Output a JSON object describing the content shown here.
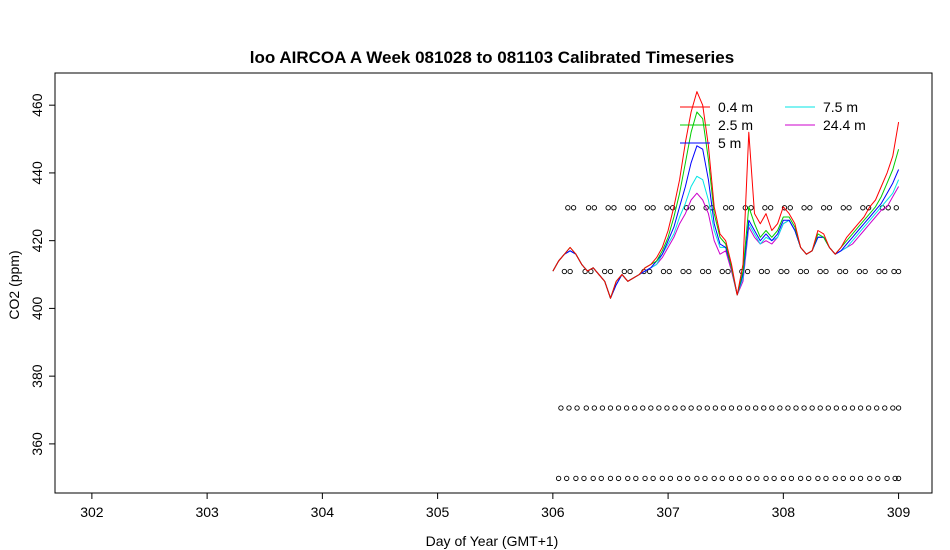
{
  "chart_data": {
    "type": "line",
    "title": "loo AIRCOA A  Week 081028 to 081103  Calibrated Timeseries",
    "xlabel": "Day of Year (GMT+1)",
    "ylabel": "CO2 (ppm)",
    "xlim": [
      301.68,
      309.29
    ],
    "ylim": [
      345.5,
      469.5
    ],
    "x_ticks": [
      302,
      303,
      304,
      305,
      306,
      307,
      308,
      309
    ],
    "x_tick_labels": [
      "302",
      "303",
      "304",
      "305",
      "306",
      "307",
      "308",
      "309"
    ],
    "y_ticks": [
      360,
      380,
      400,
      420,
      440,
      460
    ],
    "y_tick_labels": [
      "360",
      "380",
      "400",
      "420",
      "440",
      "460"
    ],
    "legend": {
      "position": "top-right",
      "columns": [
        [
          "0.4 m",
          "2.5 m",
          "5 m"
        ],
        [
          "7.5 m",
          "24.4 m"
        ]
      ]
    },
    "colors": {
      "0.4 m": "#ff0000",
      "2.5 m": "#00cc00",
      "5 m": "#0000ff",
      "7.5 m": "#00e5e5",
      "24.4 m": "#cc00cc"
    },
    "series": [
      {
        "name": "24.4 m",
        "x": [
          306.0,
          306.05,
          306.1,
          306.15,
          306.2,
          306.25,
          306.3,
          306.35,
          306.4,
          306.45,
          306.5,
          306.55,
          306.6,
          306.65,
          306.7,
          306.75,
          306.8,
          306.85,
          306.9,
          306.95,
          307.0,
          307.05,
          307.1,
          307.15,
          307.2,
          307.25,
          307.3,
          307.35,
          307.4,
          307.45,
          307.5,
          307.55,
          307.6,
          307.65,
          307.7,
          307.75,
          307.8,
          307.85,
          307.9,
          307.95,
          308.0,
          308.05,
          308.1,
          308.15,
          308.2,
          308.25,
          308.3,
          308.35,
          308.4,
          308.45,
          308.5,
          308.55,
          308.6,
          308.65,
          308.7,
          308.75,
          308.8,
          308.85,
          308.9,
          308.95,
          309.0
        ],
        "y": [
          411,
          414,
          416,
          417,
          416,
          413,
          411,
          412,
          410,
          408,
          403,
          407,
          410,
          408,
          409,
          410,
          411,
          412,
          413,
          415,
          418,
          421,
          425,
          428,
          432,
          434,
          432,
          428,
          420,
          416,
          417,
          411,
          404,
          408,
          424,
          421,
          419,
          420,
          419,
          421,
          425,
          426,
          423,
          418,
          416,
          417,
          421,
          421,
          418,
          416,
          417,
          418,
          419,
          421,
          423,
          425,
          427,
          429,
          430,
          433,
          436
        ]
      },
      {
        "name": "7.5 m",
        "x": [
          306.0,
          306.05,
          306.1,
          306.15,
          306.2,
          306.25,
          306.3,
          306.35,
          306.4,
          306.45,
          306.5,
          306.55,
          306.6,
          306.65,
          306.7,
          306.75,
          306.8,
          306.85,
          306.9,
          306.95,
          307.0,
          307.05,
          307.1,
          307.15,
          307.2,
          307.25,
          307.3,
          307.35,
          307.4,
          307.45,
          307.5,
          307.55,
          307.6,
          307.65,
          307.7,
          307.75,
          307.8,
          307.85,
          307.9,
          307.95,
          308.0,
          308.05,
          308.1,
          308.15,
          308.2,
          308.25,
          308.3,
          308.35,
          308.4,
          308.45,
          308.5,
          308.55,
          308.6,
          308.65,
          308.7,
          308.75,
          308.8,
          308.85,
          308.9,
          308.95,
          309.0
        ],
        "y": [
          411,
          414,
          416,
          417,
          416,
          413,
          411,
          412,
          410,
          408,
          403,
          407,
          410,
          408,
          409,
          410,
          411,
          412,
          413,
          416,
          419,
          422,
          427,
          431,
          436,
          439,
          438,
          432,
          423,
          418,
          418,
          412,
          404,
          409,
          425,
          422,
          419,
          421,
          420,
          421,
          425,
          426,
          423,
          418,
          416,
          417,
          421,
          421,
          418,
          416,
          417,
          418,
          420,
          422,
          424,
          426,
          428,
          430,
          432,
          434,
          438
        ]
      },
      {
        "name": "5 m",
        "x": [
          306.0,
          306.05,
          306.1,
          306.15,
          306.2,
          306.25,
          306.3,
          306.35,
          306.4,
          306.45,
          306.5,
          306.55,
          306.6,
          306.65,
          306.7,
          306.75,
          306.8,
          306.85,
          306.9,
          306.95,
          307.0,
          307.05,
          307.1,
          307.15,
          307.2,
          307.25,
          307.3,
          307.35,
          307.4,
          307.45,
          307.5,
          307.55,
          307.6,
          307.65,
          307.7,
          307.75,
          307.8,
          307.85,
          307.9,
          307.95,
          308.0,
          308.05,
          308.1,
          308.15,
          308.2,
          308.25,
          308.3,
          308.35,
          308.4,
          308.45,
          308.5,
          308.55,
          308.6,
          308.65,
          308.7,
          308.75,
          308.8,
          308.85,
          308.9,
          308.95,
          309.0
        ],
        "y": [
          411,
          414,
          416,
          417,
          416,
          413,
          411,
          412,
          410,
          408,
          403,
          407,
          410,
          408,
          409,
          410,
          411,
          412,
          414,
          416,
          420,
          424,
          430,
          436,
          443,
          448,
          447,
          438,
          425,
          419,
          418,
          412,
          404,
          410,
          426,
          423,
          420,
          422,
          420,
          422,
          426,
          426,
          423,
          418,
          416,
          417,
          421,
          421,
          418,
          416,
          417,
          419,
          421,
          423,
          425,
          427,
          429,
          431,
          434,
          437,
          441
        ]
      },
      {
        "name": "2.5 m",
        "x": [
          306.0,
          306.05,
          306.1,
          306.15,
          306.2,
          306.25,
          306.3,
          306.35,
          306.4,
          306.45,
          306.5,
          306.55,
          306.6,
          306.65,
          306.7,
          306.75,
          306.8,
          306.85,
          306.9,
          306.95,
          307.0,
          307.05,
          307.1,
          307.15,
          307.2,
          307.25,
          307.3,
          307.35,
          307.4,
          307.45,
          307.5,
          307.55,
          307.6,
          307.65,
          307.7,
          307.75,
          307.8,
          307.85,
          307.9,
          307.95,
          308.0,
          308.05,
          308.1,
          308.15,
          308.2,
          308.25,
          308.3,
          308.35,
          308.4,
          308.45,
          308.5,
          308.55,
          308.6,
          308.65,
          308.7,
          308.75,
          308.8,
          308.85,
          308.9,
          308.95,
          309.0
        ],
        "y": [
          411,
          414,
          416,
          418,
          416,
          413,
          411,
          412,
          410,
          408,
          403,
          408,
          410,
          408,
          409,
          410,
          412,
          413,
          414,
          417,
          421,
          427,
          434,
          443,
          452,
          458,
          456,
          444,
          428,
          421,
          419,
          412,
          404,
          411,
          430,
          425,
          421,
          423,
          421,
          423,
          427,
          427,
          424,
          418,
          416,
          417,
          422,
          421,
          418,
          416,
          418,
          420,
          422,
          424,
          426,
          428,
          430,
          433,
          437,
          441,
          447
        ]
      },
      {
        "name": "0.4 m",
        "x": [
          306.0,
          306.05,
          306.1,
          306.15,
          306.2,
          306.25,
          306.3,
          306.35,
          306.4,
          306.45,
          306.5,
          306.55,
          306.6,
          306.65,
          306.7,
          306.75,
          306.8,
          306.85,
          306.9,
          306.95,
          307.0,
          307.05,
          307.1,
          307.15,
          307.2,
          307.25,
          307.3,
          307.35,
          307.4,
          307.45,
          307.5,
          307.55,
          307.6,
          307.65,
          307.7,
          307.75,
          307.8,
          307.85,
          307.9,
          307.95,
          308.0,
          308.05,
          308.1,
          308.15,
          308.2,
          308.25,
          308.3,
          308.35,
          308.4,
          308.45,
          308.5,
          308.55,
          308.6,
          308.65,
          308.7,
          308.75,
          308.8,
          308.85,
          308.9,
          308.95,
          309.0
        ],
        "y": [
          411,
          414,
          416,
          418,
          416,
          413,
          411,
          412,
          410,
          408,
          403,
          408,
          410,
          408,
          409,
          410,
          412,
          413,
          415,
          418,
          423,
          430,
          438,
          449,
          458,
          464,
          460,
          448,
          430,
          422,
          420,
          413,
          404,
          413,
          452,
          428,
          425,
          428,
          423,
          425,
          430,
          428,
          425,
          418,
          416,
          417,
          423,
          422,
          418,
          416,
          418,
          421,
          423,
          425,
          427,
          430,
          432,
          436,
          440,
          445,
          455
        ]
      }
    ],
    "marker_rows": [
      {
        "y": 429.7,
        "x": [
          306.13,
          306.18,
          306.31,
          306.36,
          306.48,
          306.53,
          306.65,
          306.7,
          306.82,
          306.87,
          306.99,
          307.04,
          307.16,
          307.21,
          307.33,
          307.38,
          307.5,
          307.55,
          307.67,
          307.72,
          307.84,
          307.89,
          308.01,
          308.06,
          308.18,
          308.23,
          308.35,
          308.4,
          308.52,
          308.57,
          308.69,
          308.74,
          308.86,
          308.91,
          308.98
        ]
      },
      {
        "y": 410.9,
        "x": [
          306.1,
          306.15,
          306.28,
          306.33,
          306.45,
          306.5,
          306.62,
          306.67,
          306.79,
          306.84,
          306.96,
          307.01,
          307.13,
          307.18,
          307.3,
          307.35,
          307.47,
          307.52,
          307.64,
          307.69,
          307.81,
          307.86,
          307.98,
          308.03,
          308.15,
          308.2,
          308.32,
          308.37,
          308.49,
          308.54,
          308.66,
          308.71,
          308.83,
          308.88,
          308.96,
          309.0
        ]
      },
      {
        "y": 370.6,
        "x": [
          306.07,
          306.14,
          306.21,
          306.29,
          306.36,
          306.43,
          306.5,
          306.57,
          306.64,
          306.71,
          306.78,
          306.85,
          306.92,
          306.99,
          307.06,
          307.13,
          307.2,
          307.27,
          307.34,
          307.41,
          307.48,
          307.55,
          307.62,
          307.69,
          307.76,
          307.83,
          307.9,
          307.97,
          308.04,
          308.11,
          308.18,
          308.25,
          308.32,
          308.39,
          308.46,
          308.53,
          308.6,
          308.67,
          308.74,
          308.81,
          308.88,
          308.95,
          309.0
        ]
      },
      {
        "y": 349.8,
        "x": [
          306.05,
          306.12,
          306.2,
          306.27,
          306.35,
          306.42,
          306.5,
          306.57,
          306.65,
          306.72,
          306.8,
          306.87,
          306.95,
          307.02,
          307.1,
          307.17,
          307.25,
          307.32,
          307.4,
          307.47,
          307.55,
          307.62,
          307.7,
          307.77,
          307.85,
          307.92,
          308.0,
          308.07,
          308.15,
          308.22,
          308.3,
          308.37,
          308.45,
          308.52,
          308.6,
          308.67,
          308.75,
          308.82,
          308.9,
          308.97,
          309.0
        ]
      }
    ]
  }
}
